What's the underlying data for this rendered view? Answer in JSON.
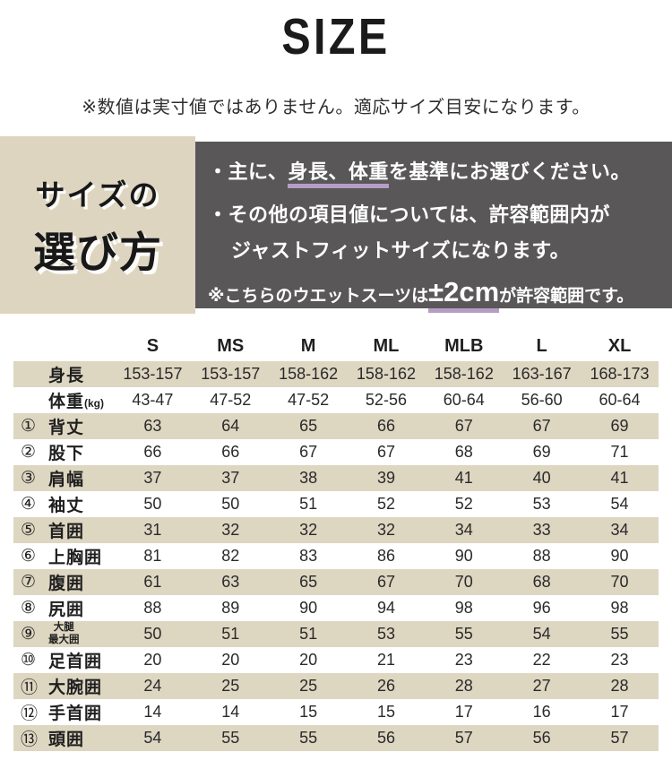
{
  "header": {
    "title": "SIZE",
    "note": "※数値は実寸値ではありません。適応サイズ目安になります。"
  },
  "guide": {
    "heading_line1": "サイズの",
    "heading_line2": "選び方",
    "bullet1_prefix": "・主に、",
    "bullet1_underlined": "身長、体重",
    "bullet1_suffix": "を基準にお選びください。",
    "bullet2_line1": "・その他の項目値については、許容範囲内が",
    "bullet2_line2": "ジャストフィットサイズになります。",
    "tolerance_prefix": "※こちらのウエットスーツは",
    "tolerance_value": "±2cm",
    "tolerance_suffix": "が許容範囲です。"
  },
  "colors": {
    "beige": "#ddd5c0",
    "dark_gray": "#595757",
    "accent_purple": "#b59dc6"
  },
  "table": {
    "size_labels": [
      "S",
      "MS",
      "M",
      "ML",
      "MLB",
      "L",
      "XL"
    ],
    "rows": [
      {
        "num": "",
        "label": "身長",
        "suffix": "",
        "values": [
          "153-157",
          "153-157",
          "158-162",
          "158-162",
          "158-162",
          "163-167",
          "168-173"
        ]
      },
      {
        "num": "",
        "label": "体重",
        "suffix": "(kg)",
        "values": [
          "43-47",
          "47-52",
          "47-52",
          "52-56",
          "60-64",
          "56-60",
          "60-64"
        ]
      },
      {
        "num": "①",
        "label": "背丈",
        "suffix": "",
        "values": [
          "63",
          "64",
          "65",
          "66",
          "67",
          "67",
          "69"
        ]
      },
      {
        "num": "②",
        "label": "股下",
        "suffix": "",
        "values": [
          "66",
          "66",
          "67",
          "67",
          "68",
          "69",
          "71"
        ]
      },
      {
        "num": "③",
        "label": "肩幅",
        "suffix": "",
        "values": [
          "37",
          "37",
          "38",
          "39",
          "41",
          "40",
          "41"
        ]
      },
      {
        "num": "④",
        "label": "袖丈",
        "suffix": "",
        "values": [
          "50",
          "50",
          "51",
          "52",
          "52",
          "53",
          "54"
        ]
      },
      {
        "num": "⑤",
        "label": "首囲",
        "suffix": "",
        "values": [
          "31",
          "32",
          "32",
          "32",
          "34",
          "33",
          "34"
        ]
      },
      {
        "num": "⑥",
        "label": "上胸囲",
        "suffix": "",
        "values": [
          "81",
          "82",
          "83",
          "86",
          "90",
          "88",
          "90"
        ]
      },
      {
        "num": "⑦",
        "label": "腹囲",
        "suffix": "",
        "values": [
          "61",
          "63",
          "65",
          "67",
          "70",
          "68",
          "70"
        ]
      },
      {
        "num": "⑧",
        "label": "尻囲",
        "suffix": "",
        "values": [
          "88",
          "89",
          "90",
          "94",
          "98",
          "96",
          "98"
        ]
      },
      {
        "num": "⑨",
        "label": "大腿",
        "label2": "最大囲",
        "suffix": "",
        "values": [
          "50",
          "51",
          "51",
          "53",
          "55",
          "54",
          "55"
        ]
      },
      {
        "num": "⑩",
        "label": "足首囲",
        "suffix": "",
        "values": [
          "20",
          "20",
          "20",
          "21",
          "23",
          "22",
          "23"
        ]
      },
      {
        "num": "⑪",
        "label": "大腕囲",
        "suffix": "",
        "values": [
          "24",
          "25",
          "25",
          "26",
          "28",
          "27",
          "28"
        ]
      },
      {
        "num": "⑫",
        "label": "手首囲",
        "suffix": "",
        "values": [
          "14",
          "14",
          "15",
          "15",
          "17",
          "16",
          "17"
        ]
      },
      {
        "num": "⑬",
        "label": "頭囲",
        "suffix": "",
        "values": [
          "54",
          "55",
          "55",
          "56",
          "57",
          "56",
          "57"
        ]
      }
    ]
  }
}
